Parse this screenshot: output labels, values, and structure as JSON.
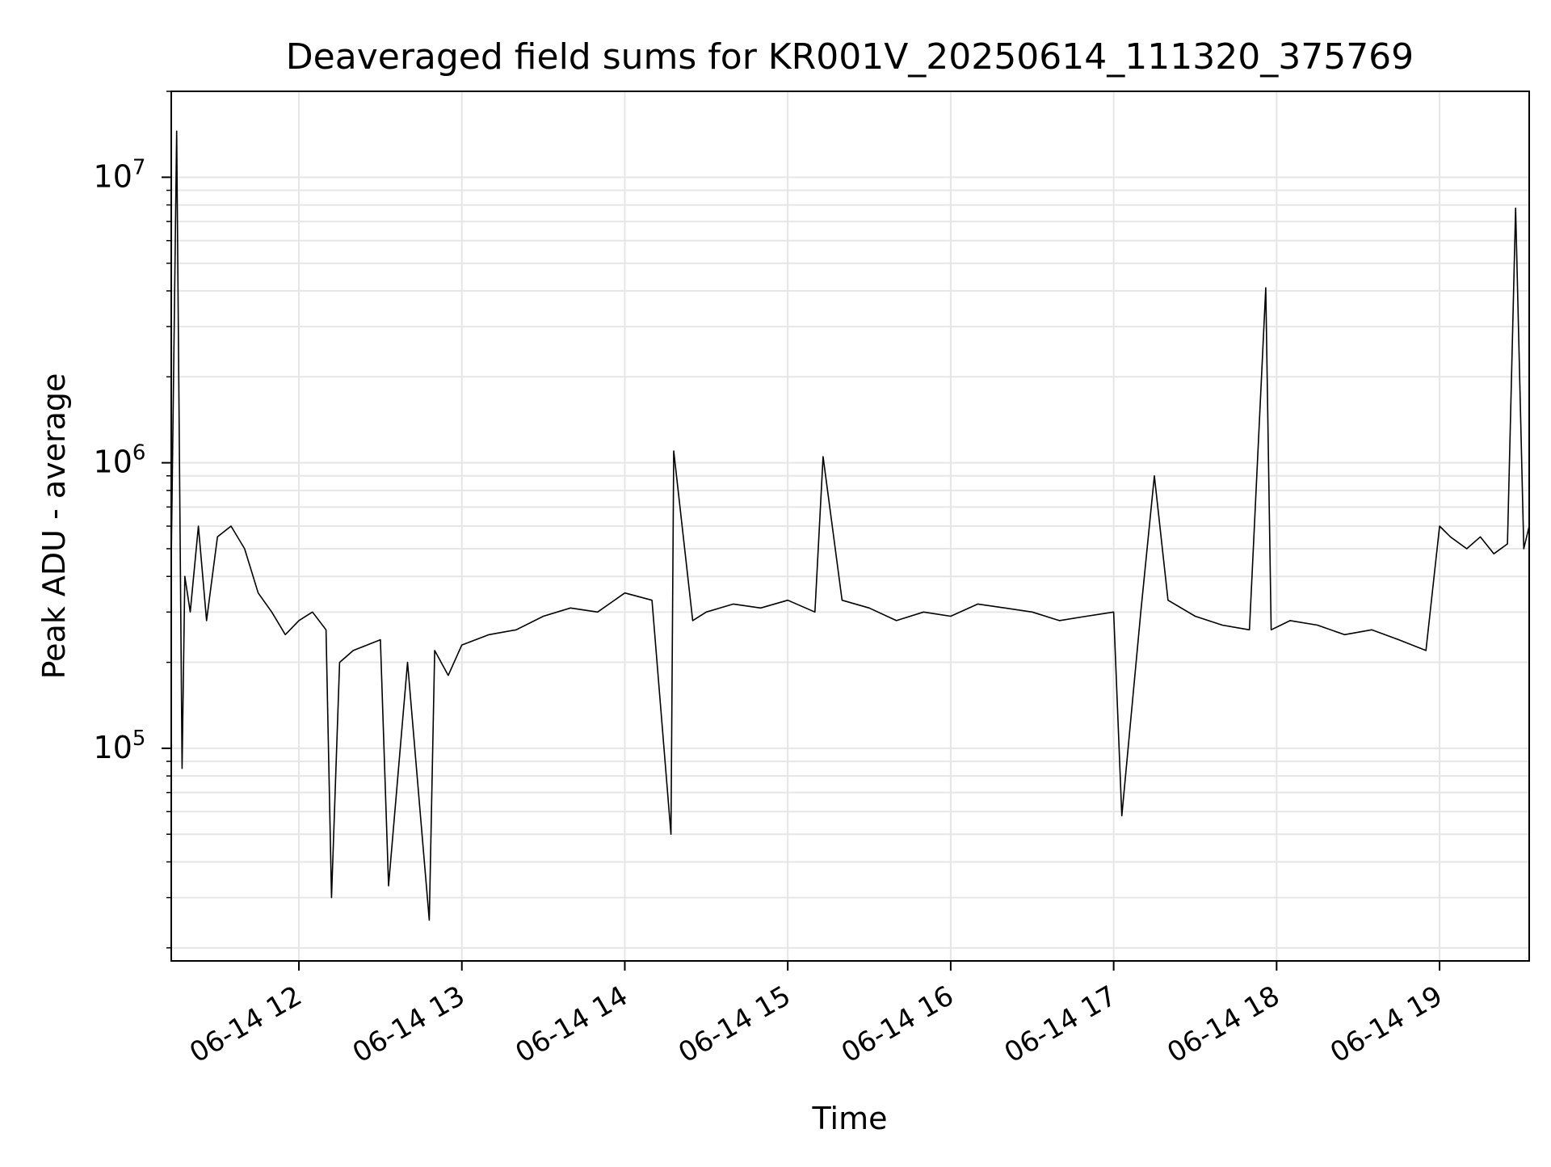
{
  "chart_data": {
    "type": "line",
    "title": "Deaveraged field sums for KR001V_20250614_111320_375769",
    "xlabel": "Time",
    "ylabel": "Peak ADU - average",
    "y_scale": "log",
    "ylim": [
      18000,
      20000000
    ],
    "xlim": [
      "2025-06-14 11:13",
      "2025-06-14 19:33"
    ],
    "grid": true,
    "line_color": "#000000",
    "grid_color": "#e6e6e6",
    "x_ticks": [
      {
        "value": "2025-06-14 12:00",
        "label": "06-14 12"
      },
      {
        "value": "2025-06-14 13:00",
        "label": "06-14 13"
      },
      {
        "value": "2025-06-14 14:00",
        "label": "06-14 14"
      },
      {
        "value": "2025-06-14 15:00",
        "label": "06-14 15"
      },
      {
        "value": "2025-06-14 16:00",
        "label": "06-14 16"
      },
      {
        "value": "2025-06-14 17:00",
        "label": "06-14 17"
      },
      {
        "value": "2025-06-14 18:00",
        "label": "06-14 18"
      },
      {
        "value": "2025-06-14 19:00",
        "label": "06-14 19"
      }
    ],
    "y_ticks": [
      {
        "value": 100000,
        "base": "10",
        "exp": "5"
      },
      {
        "value": 1000000,
        "base": "10",
        "exp": "6"
      },
      {
        "value": 10000000,
        "base": "10",
        "exp": "7"
      }
    ],
    "series": [
      {
        "x": [
          "2025-06-14 11:13",
          "2025-06-14 11:15",
          "2025-06-14 11:17",
          "2025-06-14 11:18",
          "2025-06-14 11:20",
          "2025-06-14 11:23",
          "2025-06-14 11:26",
          "2025-06-14 11:30",
          "2025-06-14 11:35",
          "2025-06-14 11:40",
          "2025-06-14 11:45",
          "2025-06-14 11:50",
          "2025-06-14 11:55",
          "2025-06-14 12:00",
          "2025-06-14 12:05",
          "2025-06-14 12:10",
          "2025-06-14 12:12",
          "2025-06-14 12:15",
          "2025-06-14 12:20",
          "2025-06-14 12:30",
          "2025-06-14 12:33",
          "2025-06-14 12:40",
          "2025-06-14 12:48",
          "2025-06-14 12:50",
          "2025-06-14 12:55",
          "2025-06-14 13:00",
          "2025-06-14 13:10",
          "2025-06-14 13:20",
          "2025-06-14 13:30",
          "2025-06-14 13:40",
          "2025-06-14 13:50",
          "2025-06-14 14:00",
          "2025-06-14 14:10",
          "2025-06-14 14:17",
          "2025-06-14 14:18",
          "2025-06-14 14:25",
          "2025-06-14 14:30",
          "2025-06-14 14:40",
          "2025-06-14 14:50",
          "2025-06-14 15:00",
          "2025-06-14 15:10",
          "2025-06-14 15:13",
          "2025-06-14 15:20",
          "2025-06-14 15:30",
          "2025-06-14 15:40",
          "2025-06-14 15:50",
          "2025-06-14 16:00",
          "2025-06-14 16:10",
          "2025-06-14 16:20",
          "2025-06-14 16:30",
          "2025-06-14 16:40",
          "2025-06-14 16:50",
          "2025-06-14 17:00",
          "2025-06-14 17:03",
          "2025-06-14 17:10",
          "2025-06-14 17:15",
          "2025-06-14 17:20",
          "2025-06-14 17:30",
          "2025-06-14 17:40",
          "2025-06-14 17:50",
          "2025-06-14 17:56",
          "2025-06-14 17:58",
          "2025-06-14 18:05",
          "2025-06-14 18:15",
          "2025-06-14 18:25",
          "2025-06-14 18:35",
          "2025-06-14 18:45",
          "2025-06-14 18:55",
          "2025-06-14 19:00",
          "2025-06-14 19:04",
          "2025-06-14 19:10",
          "2025-06-14 19:15",
          "2025-06-14 19:20",
          "2025-06-14 19:25",
          "2025-06-14 19:28",
          "2025-06-14 19:31",
          "2025-06-14 19:33"
        ],
        "y": [
          450000,
          14500000,
          85000,
          400000,
          300000,
          600000,
          280000,
          550000,
          600000,
          500000,
          350000,
          300000,
          250000,
          280000,
          300000,
          260000,
          30000,
          200000,
          220000,
          240000,
          33000,
          200000,
          25000,
          220000,
          180000,
          230000,
          250000,
          260000,
          290000,
          310000,
          300000,
          350000,
          330000,
          50000,
          1100000,
          280000,
          300000,
          320000,
          310000,
          330000,
          300000,
          1050000,
          330000,
          310000,
          280000,
          300000,
          290000,
          320000,
          310000,
          300000,
          280000,
          290000,
          300000,
          58000,
          300000,
          900000,
          330000,
          290000,
          270000,
          260000,
          4100000,
          260000,
          280000,
          270000,
          250000,
          260000,
          240000,
          220000,
          600000,
          550000,
          500000,
          550000,
          480000,
          520000,
          7800000,
          500000,
          600000
        ]
      }
    ]
  }
}
